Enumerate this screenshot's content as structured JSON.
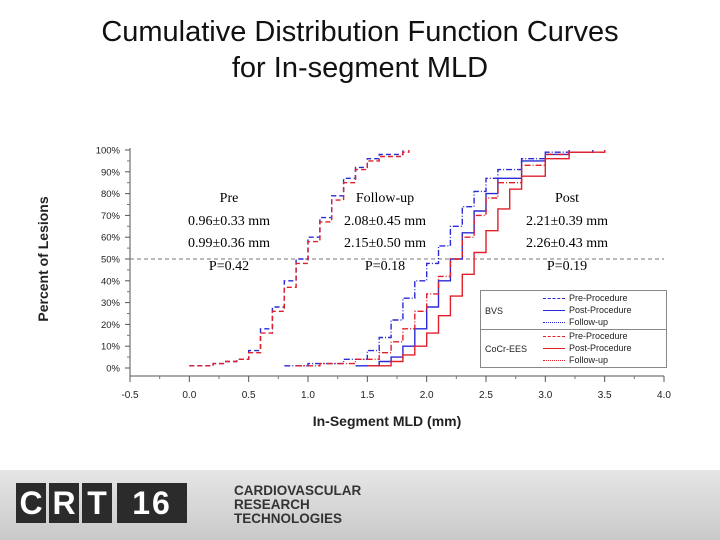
{
  "slide": {
    "title_line1": "Cumulative Distribution Function Curves",
    "title_line2": "for In-segment MLD"
  },
  "annotations": [
    {
      "name": "pre",
      "lines": [
        "Pre",
        "0.96±0.33 mm",
        "0.99±0.36 mm",
        "P=0.42"
      ]
    },
    {
      "name": "follow-up",
      "lines": [
        "Follow-up",
        "2.08±0.45 mm",
        "2.15±0.50 mm",
        "P=0.18"
      ]
    },
    {
      "name": "post",
      "lines": [
        "Post",
        "2.21±0.39 mm",
        "2.26±0.43 mm",
        "P=0.19"
      ]
    }
  ],
  "legend": {
    "groups": [
      {
        "name": "BVS",
        "color": "#2a2ad6",
        "items": [
          "Pre-Procedure",
          "Post-Procedure",
          "Follow-up"
        ]
      },
      {
        "name": "CoCr-EES",
        "color": "#e0202a",
        "items": [
          "Pre-Procedure",
          "Post-Procedure",
          "Follow-up"
        ]
      }
    ]
  },
  "footer": {
    "logo_letters": [
      "C",
      "R",
      "T",
      "16"
    ],
    "logo_text": [
      "CARDIOVASCULAR",
      "RESEARCH",
      "TECHNOLOGIES"
    ]
  },
  "chart_data": {
    "type": "line",
    "xlabel": "In-Segment MLD (mm)",
    "ylabel": "Percent of Lesions",
    "xlim": [
      -0.5,
      4.0
    ],
    "ylim": [
      0,
      100
    ],
    "xticks": [
      "-0.5",
      "0.0",
      "0.5",
      "1.0",
      "1.5",
      "2.0",
      "2.5",
      "3.0",
      "3.5",
      "4.0"
    ],
    "yticks": [
      "0%",
      "10%",
      "20%",
      "30%",
      "40%",
      "50%",
      "60%",
      "70%",
      "80%",
      "90%",
      "100%"
    ],
    "reference_line_y": 50,
    "grid": false,
    "series": [
      {
        "name": "BVS Pre-Procedure",
        "group": "BVS",
        "color": "#2a2ad6",
        "dash": "5,3",
        "x": [
          0.0,
          0.2,
          0.3,
          0.4,
          0.5,
          0.6,
          0.7,
          0.8,
          0.9,
          1.0,
          1.1,
          1.2,
          1.3,
          1.4,
          1.5,
          1.6,
          1.8
        ],
        "y": [
          1,
          2,
          3,
          4,
          8,
          18,
          28,
          40,
          50,
          60,
          69,
          79,
          87,
          92,
          96,
          98,
          100
        ]
      },
      {
        "name": "BVS Post-Procedure",
        "group": "BVS",
        "color": "#2a2ad6",
        "dash": "",
        "x": [
          1.4,
          1.6,
          1.7,
          1.8,
          1.9,
          2.0,
          2.1,
          2.2,
          2.3,
          2.4,
          2.5,
          2.6,
          2.8,
          3.0,
          3.2,
          3.4
        ],
        "y": [
          1,
          3,
          5,
          10,
          18,
          28,
          40,
          50,
          62,
          72,
          80,
          87,
          95,
          98,
          99,
          100
        ]
      },
      {
        "name": "BVS Follow-up",
        "group": "BVS",
        "color": "#2a2ad6",
        "dash": "6,2,1,2",
        "x": [
          0.8,
          1.0,
          1.3,
          1.5,
          1.6,
          1.7,
          1.8,
          1.9,
          2.0,
          2.1,
          2.2,
          2.3,
          2.4,
          2.5,
          2.6,
          2.8,
          3.0,
          3.2
        ],
        "y": [
          1,
          2,
          4,
          8,
          14,
          22,
          32,
          40,
          48,
          56,
          65,
          74,
          81,
          87,
          91,
          96,
          99,
          100
        ]
      },
      {
        "name": "CoCr-EES Pre-Procedure",
        "group": "CoCr-EES",
        "color": "#e0202a",
        "dash": "5,3",
        "x": [
          0.0,
          0.2,
          0.3,
          0.4,
          0.5,
          0.6,
          0.7,
          0.8,
          0.9,
          1.0,
          1.1,
          1.2,
          1.3,
          1.4,
          1.5,
          1.6,
          1.8,
          1.85
        ],
        "y": [
          1,
          2,
          3,
          4,
          7,
          16,
          26,
          37,
          48,
          58,
          67,
          77,
          85,
          91,
          95,
          97,
          99,
          100
        ]
      },
      {
        "name": "CoCr-EES Post-Procedure",
        "group": "CoCr-EES",
        "color": "#e0202a",
        "dash": "",
        "x": [
          1.5,
          1.7,
          1.8,
          1.9,
          2.0,
          2.1,
          2.2,
          2.3,
          2.4,
          2.5,
          2.6,
          2.7,
          2.8,
          3.0,
          3.2,
          3.5
        ],
        "y": [
          1,
          3,
          6,
          10,
          16,
          24,
          33,
          43,
          53,
          63,
          73,
          82,
          88,
          96,
          99,
          100
        ]
      },
      {
        "name": "CoCr-EES Follow-up",
        "group": "CoCr-EES",
        "color": "#e0202a",
        "dash": "6,2,1,2",
        "x": [
          0.9,
          1.1,
          1.4,
          1.6,
          1.7,
          1.8,
          1.9,
          2.0,
          2.1,
          2.2,
          2.3,
          2.4,
          2.5,
          2.6,
          2.8,
          3.0,
          3.2,
          3.5
        ],
        "y": [
          1,
          2,
          4,
          7,
          12,
          18,
          26,
          34,
          42,
          50,
          60,
          70,
          78,
          85,
          93,
          98,
          99,
          100
        ]
      }
    ]
  }
}
